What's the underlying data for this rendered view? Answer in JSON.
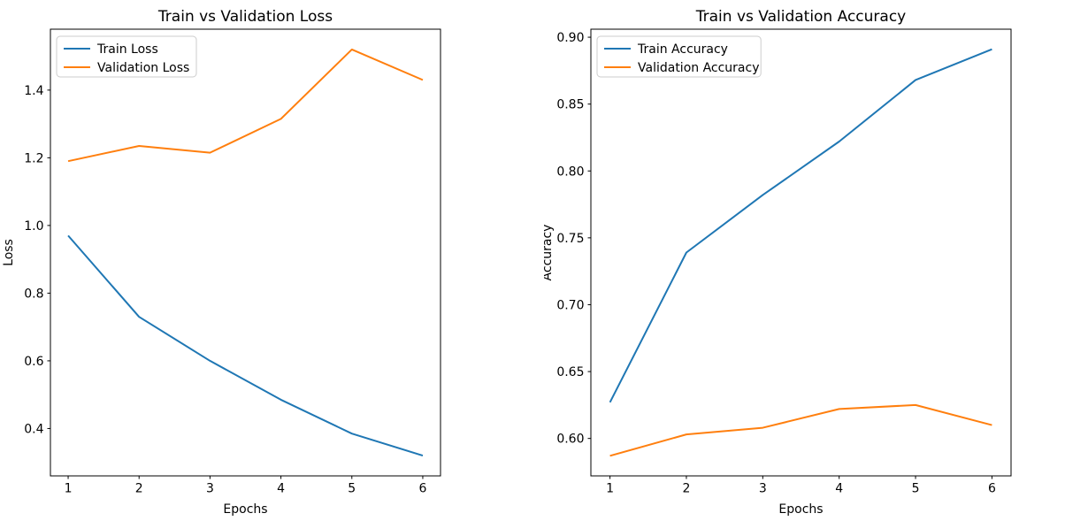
{
  "figure": {
    "background": "#ffffff",
    "axis_color": "#000000",
    "legend_border_color": "#cccccc",
    "legend_background": "#ffffff"
  },
  "chart_data": [
    {
      "type": "line",
      "title": "Train vs Validation Loss",
      "xlabel": "Epochs",
      "ylabel": "Loss",
      "x": [
        1,
        2,
        3,
        4,
        5,
        6
      ],
      "xlim": [
        0.75,
        6.25
      ],
      "ylim": [
        0.26,
        1.58
      ],
      "xticks": [
        1,
        2,
        3,
        4,
        5,
        6
      ],
      "xtick_labels": [
        "1",
        "2",
        "3",
        "4",
        "5",
        "6"
      ],
      "yticks": [
        0.4,
        0.6,
        0.8,
        1.0,
        1.2,
        1.4
      ],
      "ytick_labels": [
        "0.4",
        "0.6",
        "0.8",
        "1.0",
        "1.2",
        "1.4"
      ],
      "grid": false,
      "legend_position": "upper-left",
      "series": [
        {
          "name": "Train Loss",
          "color": "#1f77b4",
          "values": [
            0.97,
            0.73,
            0.6,
            0.485,
            0.385,
            0.32
          ]
        },
        {
          "name": "Validation Loss",
          "color": "#ff7f0e",
          "values": [
            1.19,
            1.235,
            1.215,
            1.315,
            1.52,
            1.43
          ]
        }
      ]
    },
    {
      "type": "line",
      "title": "Train vs Validation Accuracy",
      "xlabel": "Epochs",
      "ylabel": "Accuracy",
      "x": [
        1,
        2,
        3,
        4,
        5,
        6
      ],
      "xlim": [
        0.75,
        6.25
      ],
      "ylim": [
        0.572,
        0.906
      ],
      "xticks": [
        1,
        2,
        3,
        4,
        5,
        6
      ],
      "xtick_labels": [
        "1",
        "2",
        "3",
        "4",
        "5",
        "6"
      ],
      "yticks": [
        0.6,
        0.65,
        0.7,
        0.75,
        0.8,
        0.85,
        0.9
      ],
      "ytick_labels": [
        "0.60",
        "0.65",
        "0.70",
        "0.75",
        "0.80",
        "0.85",
        "0.90"
      ],
      "grid": false,
      "legend_position": "upper-left",
      "series": [
        {
          "name": "Train Accuracy",
          "color": "#1f77b4",
          "values": [
            0.627,
            0.739,
            0.782,
            0.822,
            0.868,
            0.891
          ]
        },
        {
          "name": "Validation Accuracy",
          "color": "#ff7f0e",
          "values": [
            0.587,
            0.603,
            0.608,
            0.622,
            0.625,
            0.61
          ]
        }
      ]
    }
  ]
}
